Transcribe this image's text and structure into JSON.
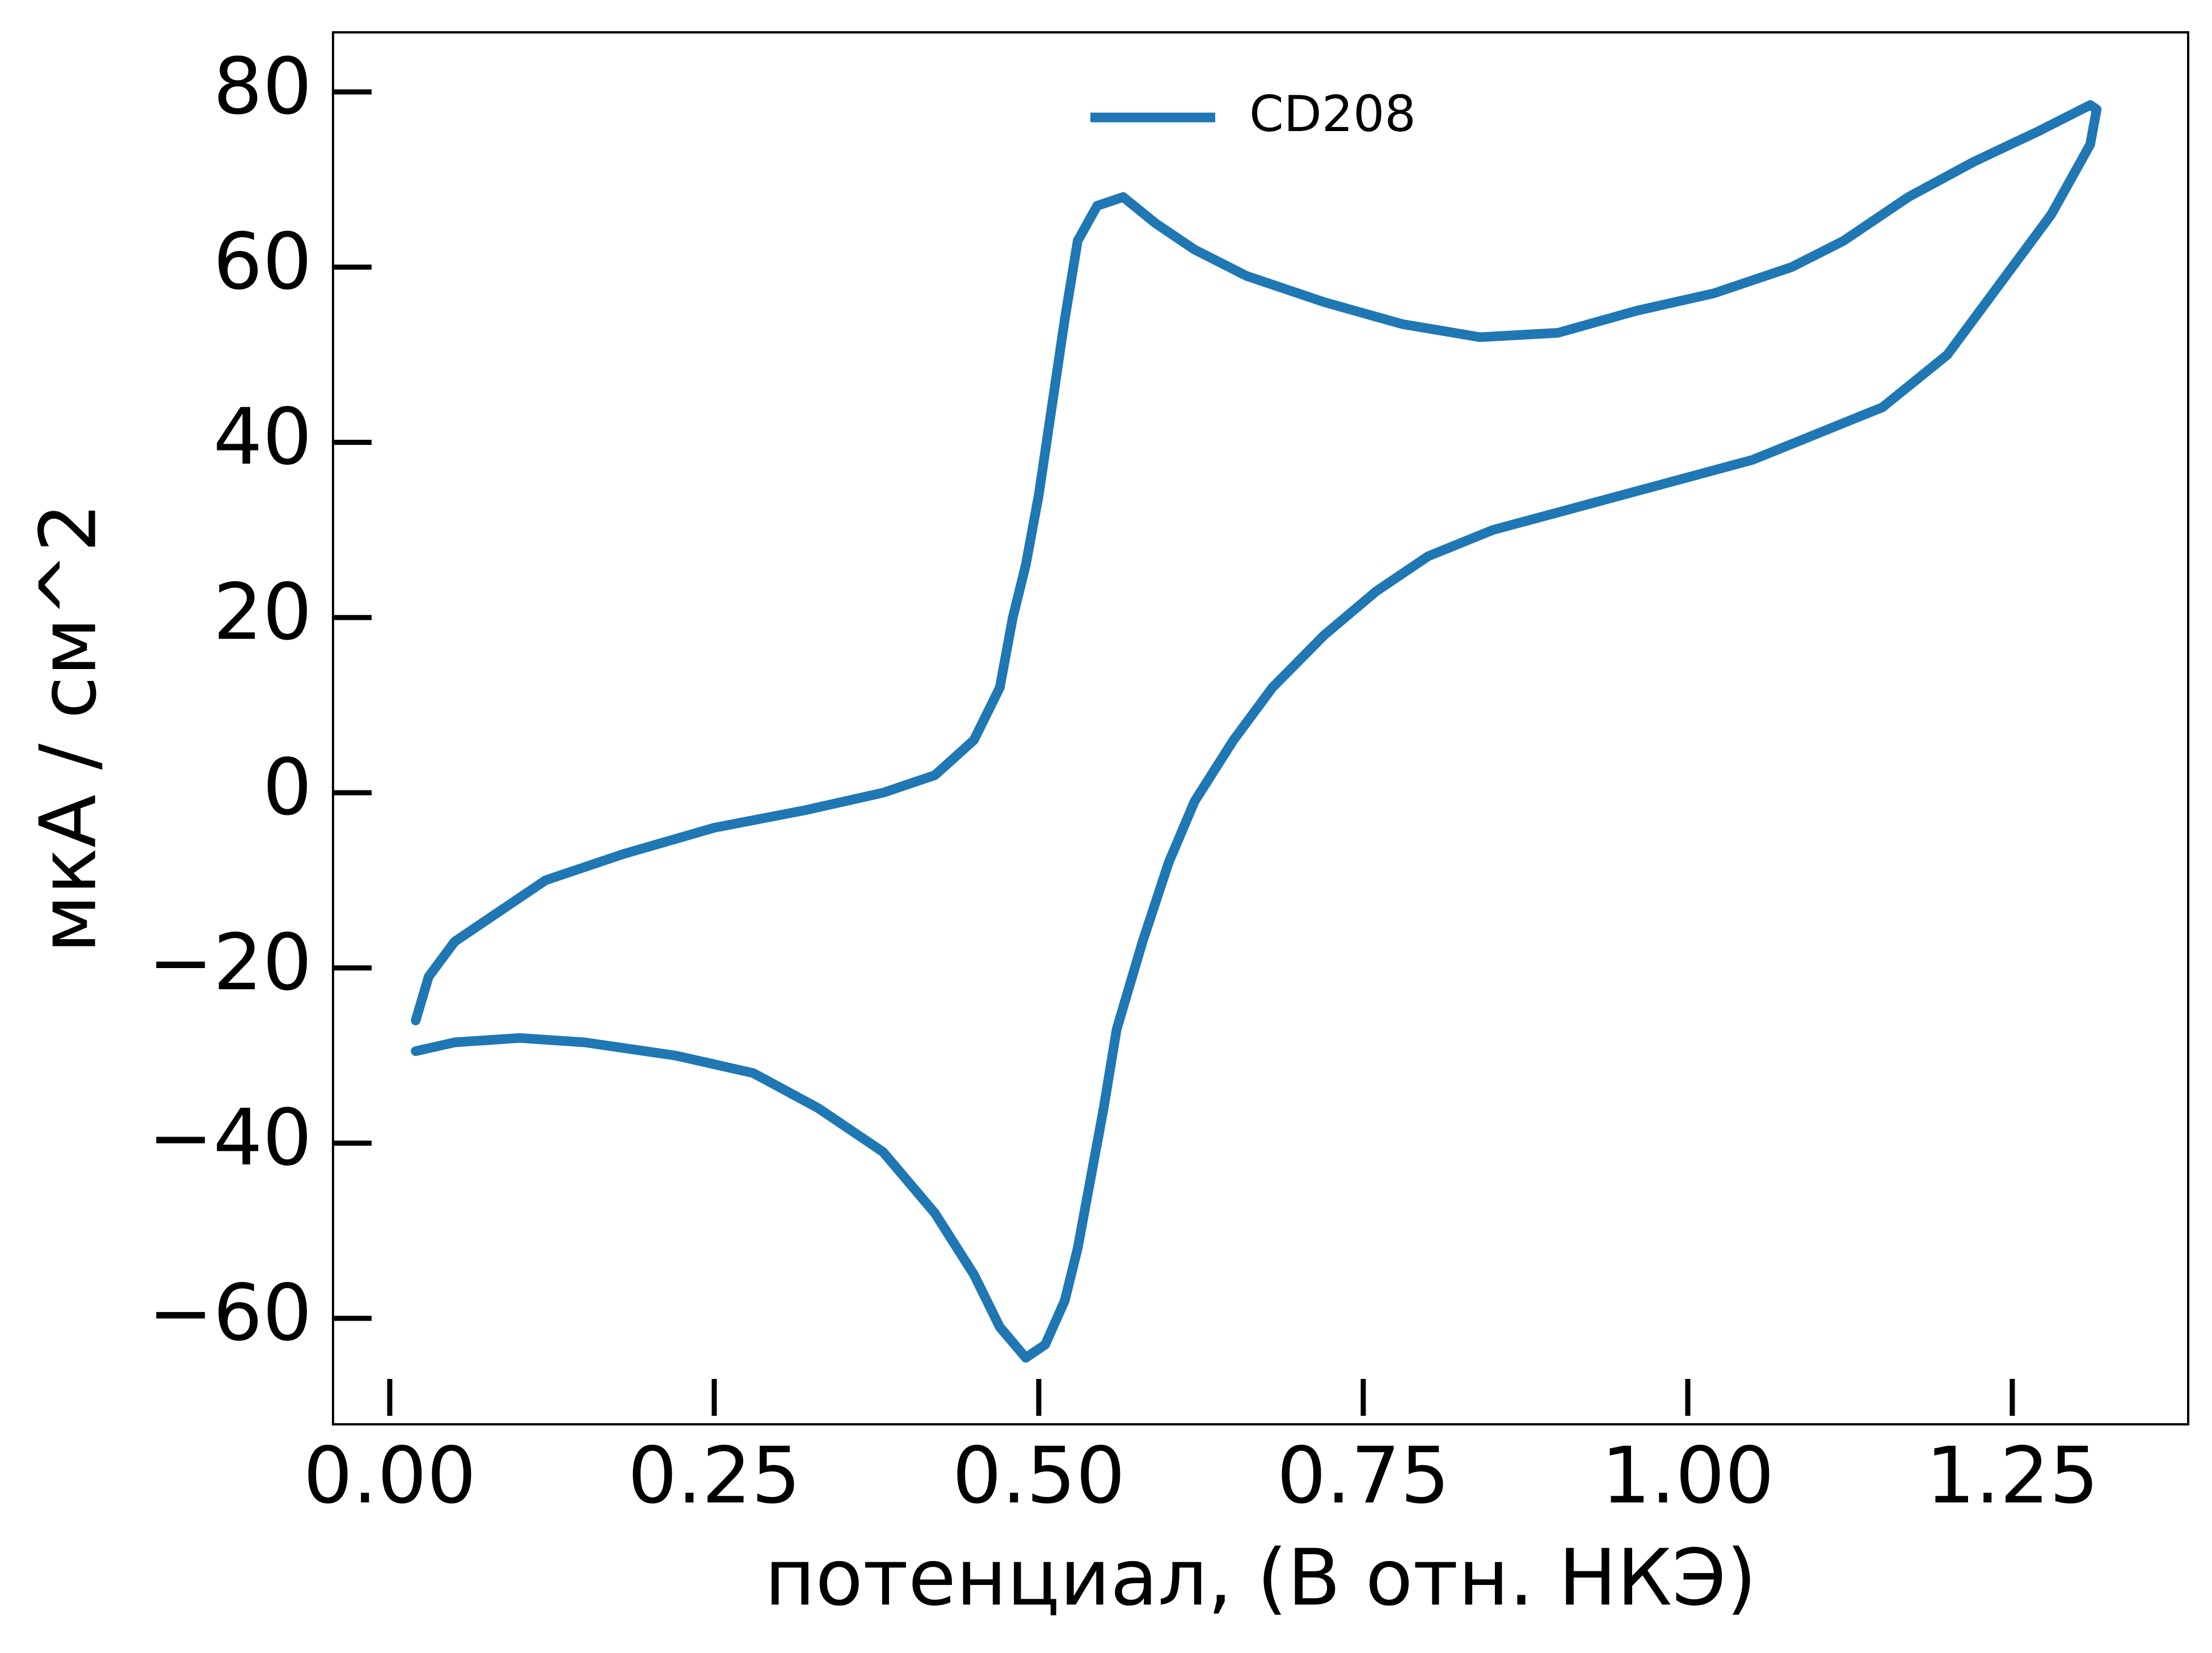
{
  "chart_data": {
    "type": "line",
    "x_label": "потенциал, (В отн. НКЭ)",
    "y_label": "мкА / см^2",
    "x": [
      0.02,
      0.03,
      0.05,
      0.08,
      0.12,
      0.18,
      0.25,
      0.32,
      0.38,
      0.42,
      0.45,
      0.47,
      0.48,
      0.49,
      0.5,
      0.51,
      0.52,
      0.53,
      0.545,
      0.565,
      0.59,
      0.62,
      0.66,
      0.72,
      0.78,
      0.84,
      0.9,
      0.96,
      1.02,
      1.08,
      1.12,
      1.17,
      1.22,
      1.27,
      1.31,
      1.315,
      1.31,
      1.28,
      1.24,
      1.2,
      1.15,
      1.1,
      1.05,
      1.0,
      0.95,
      0.9,
      0.85,
      0.8,
      0.76,
      0.72,
      0.68,
      0.65,
      0.62,
      0.6,
      0.58,
      0.56,
      0.55,
      0.54,
      0.53,
      0.52,
      0.505,
      0.49,
      0.47,
      0.45,
      0.42,
      0.38,
      0.33,
      0.28,
      0.22,
      0.15,
      0.1,
      0.05,
      0.02
    ],
    "series": [
      {
        "name": "CD208",
        "color": "#1f77b4",
        "values": [
          -26,
          -21,
          -17,
          -14,
          -10,
          -7,
          -4,
          -2,
          0,
          2,
          6,
          12,
          20,
          26,
          34,
          44,
          54,
          63,
          67,
          68,
          65,
          62,
          59,
          56,
          53.5,
          52,
          52.5,
          55,
          57,
          60,
          63,
          68,
          72,
          75.5,
          78.5,
          78,
          74,
          66,
          58,
          50,
          44,
          41,
          38,
          36,
          34,
          32,
          30,
          27,
          23,
          18,
          12,
          6,
          -1,
          -8,
          -17,
          -27,
          -36,
          -44,
          -52,
          -58,
          -63,
          -64.5,
          -61,
          -55,
          -48,
          -41,
          -36,
          -32,
          -30,
          -28.5,
          -28,
          -28.5,
          -29.5
        ]
      }
    ],
    "xlim": [
      -0.0437,
      1.3855
    ],
    "ylim": [
      -72.1,
      86.8
    ],
    "xticks": [
      {
        "value": 0,
        "label": "0.00"
      },
      {
        "value": 0.25,
        "label": "0.25"
      },
      {
        "value": 0.5,
        "label": "0.50"
      },
      {
        "value": 0.75,
        "label": "0.75"
      },
      {
        "value": 1,
        "label": "1.00"
      },
      {
        "value": 1.25,
        "label": "1.25"
      }
    ],
    "yticks": [
      {
        "value": -60,
        "label": "−60"
      },
      {
        "value": -40,
        "label": "−40"
      },
      {
        "value": -20,
        "label": "−20"
      },
      0,
      20,
      40,
      60,
      80
    ],
    "grid": false,
    "legend": "upper center"
  }
}
